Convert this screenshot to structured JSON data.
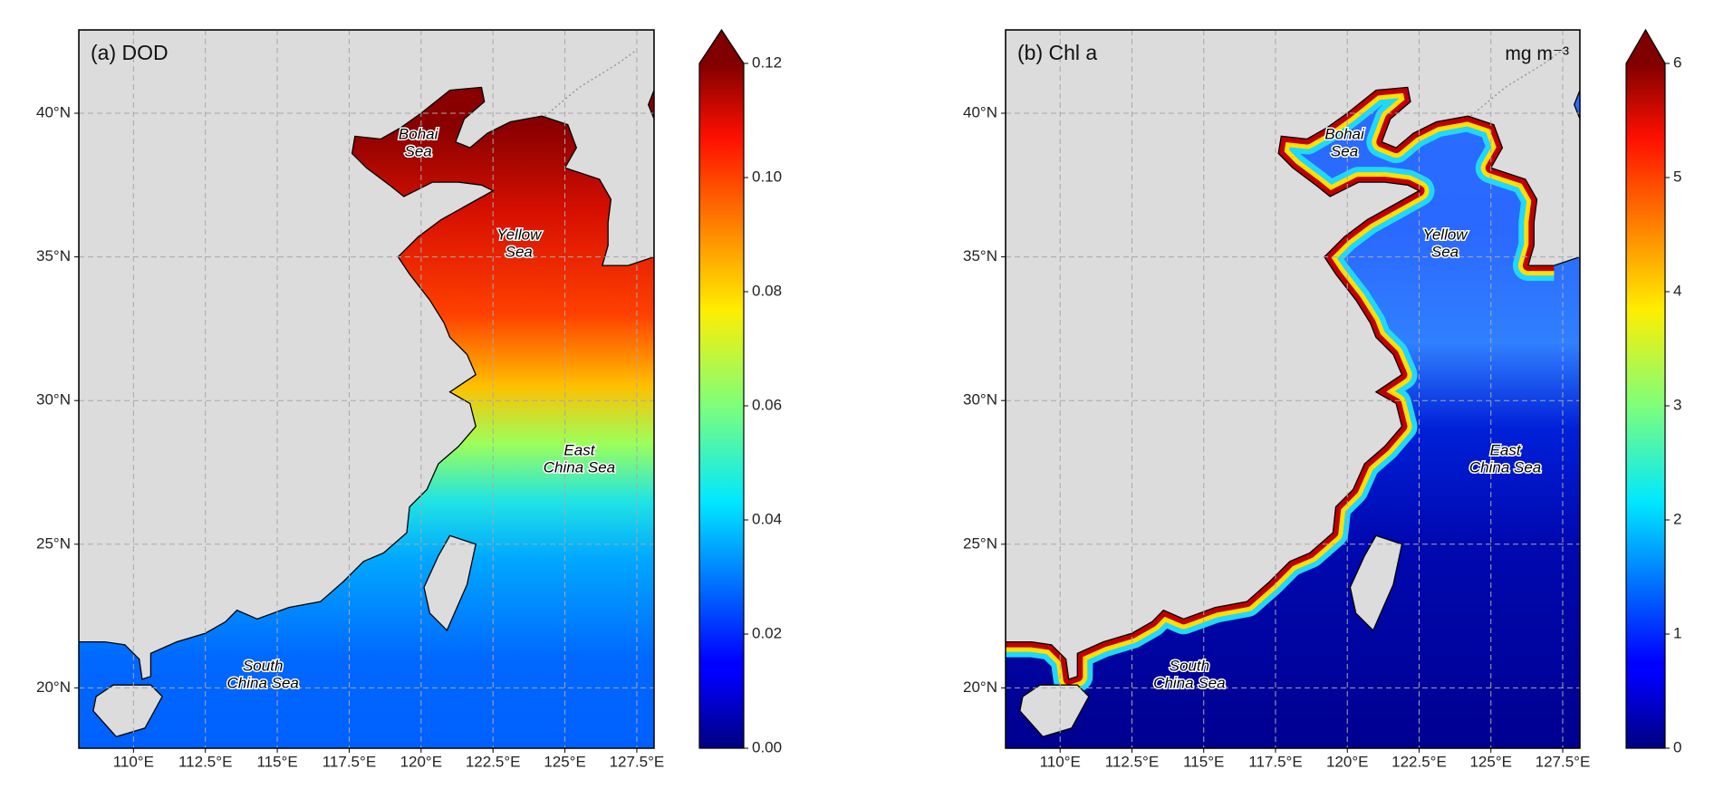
{
  "panels": [
    {
      "type": "map",
      "title": "(a) DOD",
      "xlim": [
        108.1,
        128.1
      ],
      "ylim": [
        17.9,
        42.9
      ],
      "xticks": [
        {
          "value": 110,
          "label": "110°E"
        },
        {
          "value": 112.5,
          "label": "112.5°E"
        },
        {
          "value": 115,
          "label": "115°E"
        },
        {
          "value": 117.5,
          "label": "117.5°E"
        },
        {
          "value": 120,
          "label": "120°E"
        },
        {
          "value": 122.5,
          "label": "122.5°E"
        },
        {
          "value": 125,
          "label": "125°E"
        },
        {
          "value": 127.5,
          "label": "127.5°E"
        }
      ],
      "yticks": [
        {
          "value": 20,
          "label": "20°N"
        },
        {
          "value": 25,
          "label": "25°N"
        },
        {
          "value": 30,
          "label": "30°N"
        },
        {
          "value": 35,
          "label": "35°N"
        },
        {
          "value": 40,
          "label": "40°N"
        }
      ],
      "grid": true,
      "annotations": [
        [
          "Bohai",
          "Sea"
        ],
        [
          "Yellow",
          "Sea"
        ],
        [
          "East",
          "China Sea"
        ],
        [
          "South",
          "China Sea"
        ]
      ],
      "colorbar": {
        "colormap": "jet",
        "extend": "max",
        "lim": [
          0,
          0.12
        ],
        "ticks": [
          {
            "value": 0,
            "label": "0.00"
          },
          {
            "value": 0.02,
            "label": "0.02"
          },
          {
            "value": 0.04,
            "label": "0.04"
          },
          {
            "value": 0.06,
            "label": "0.06"
          },
          {
            "value": 0.08,
            "label": "0.08"
          },
          {
            "value": 0.1,
            "label": "0.10"
          },
          {
            "value": 0.12,
            "label": "0.12"
          }
        ]
      }
    },
    {
      "type": "map",
      "title": "(b) Chl a",
      "units": "mg m⁻³",
      "xlim": [
        108.1,
        128.1
      ],
      "ylim": [
        17.9,
        42.9
      ],
      "xticks": [
        {
          "value": 110,
          "label": "110°E"
        },
        {
          "value": 112.5,
          "label": "112.5°E"
        },
        {
          "value": 115,
          "label": "115°E"
        },
        {
          "value": 117.5,
          "label": "117.5°E"
        },
        {
          "value": 120,
          "label": "120°E"
        },
        {
          "value": 122.5,
          "label": "122.5°E"
        },
        {
          "value": 125,
          "label": "125°E"
        },
        {
          "value": 127.5,
          "label": "127.5°E"
        }
      ],
      "yticks": [
        {
          "value": 20,
          "label": "20°N"
        },
        {
          "value": 25,
          "label": "25°N"
        },
        {
          "value": 30,
          "label": "30°N"
        },
        {
          "value": 35,
          "label": "35°N"
        },
        {
          "value": 40,
          "label": "40°N"
        }
      ],
      "grid": true,
      "annotations": [
        [
          "Bohai",
          "Sea"
        ],
        [
          "Yellow",
          "Sea"
        ],
        [
          "East",
          "China Sea"
        ],
        [
          "South",
          "China Sea"
        ]
      ],
      "colorbar": {
        "colormap": "jet",
        "extend": "max",
        "lim": [
          0,
          6
        ],
        "ticks": [
          0,
          1,
          2,
          3,
          4,
          5,
          6
        ]
      }
    }
  ]
}
